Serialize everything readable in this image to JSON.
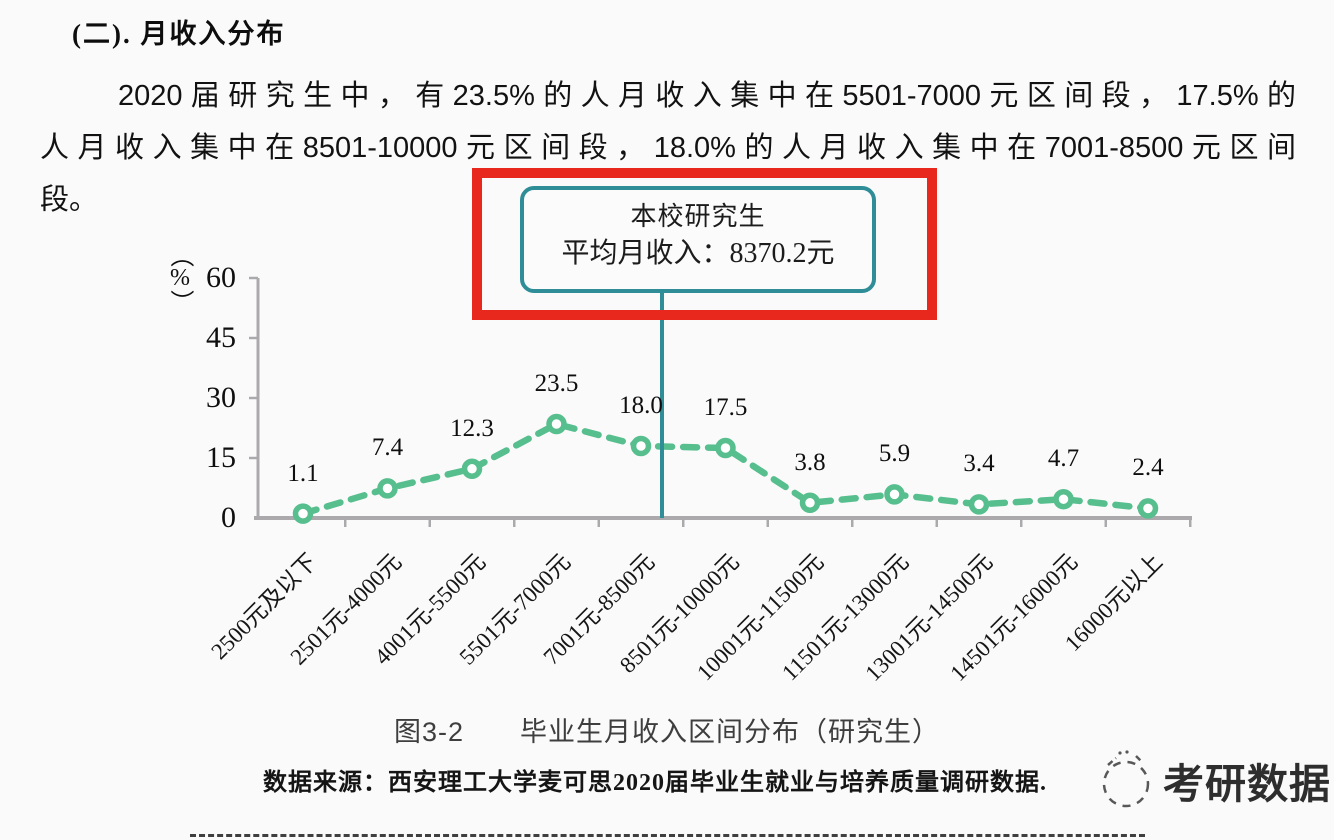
{
  "page": {
    "background": "#fbfafb"
  },
  "heading": "(二). 月收入分布",
  "paragraph": {
    "lines": [
      "2020届研究生中，有23.5%的人月收入集中在5501-7000元区间段，17.5%的",
      "人月收入集中在8501-10000元区间段，18.0%的人月收入集中在7001-8500元区间",
      "段。"
    ]
  },
  "callout": {
    "line1": "本校研究生",
    "line2": "平均月收入：8370.2元",
    "box_border_color": "#2E8D97",
    "highlight_color": "#E8271D"
  },
  "chart_data": {
    "type": "line",
    "title": "图3-2　　毕业生月收入区间分布（研究生）",
    "ylabel": "（%）",
    "ylim": [
      0,
      60
    ],
    "yticks": [
      0,
      15,
      30,
      45,
      60
    ],
    "grid": false,
    "legend": "none",
    "line_style": "dashed",
    "marker": "open-circle",
    "line_color": "#57BE8E",
    "axis_color": "#ABA9AC",
    "annotation_line_color": "#2E8D97",
    "categories": [
      "2500元及以下",
      "2501元-4000元",
      "4001元-5500元",
      "5501元-7000元",
      "7001元-8500元",
      "8501元-10000元",
      "10001元-11500元",
      "11501元-13000元",
      "13001元-14500元",
      "14501元-16000元",
      "16000元以上"
    ],
    "series": [
      {
        "values": [
          1.1,
          7.4,
          12.3,
          23.5,
          18.0,
          17.5,
          3.8,
          5.9,
          3.4,
          4.7,
          2.4
        ],
        "labels": [
          "1.1",
          "7.4",
          "12.3",
          "23.5",
          "18.0",
          "17.5",
          "3.8",
          "5.9",
          "3.4",
          "4.7",
          "2.4"
        ]
      }
    ]
  },
  "caption": "图3-2　　毕业生月收入区间分布（研究生）",
  "source": "数据来源：西安理工大学麦可思2020届毕业生就业与培养质量调研数据.",
  "watermark": {
    "text": "考研数据",
    "icon": "dashed-cat-logo"
  }
}
